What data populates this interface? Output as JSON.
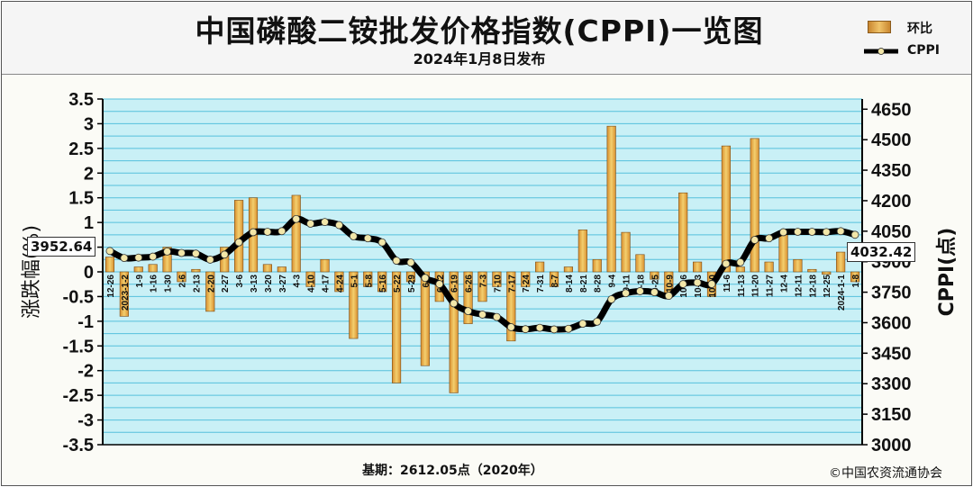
{
  "title": "中国磷酸二铵批发价格指数(CPPI)一览图",
  "subtitle": "2024年1月8日发布",
  "legend": {
    "bar_label": "环比",
    "line_label": "CPPI"
  },
  "axes": {
    "left_label": "涨跌幅(%)",
    "right_label": "CPPI(点)",
    "left_ticks": [
      "3.5",
      "3",
      "2.5",
      "2",
      "1.5",
      "1",
      "0.5",
      "0",
      "-0.5",
      "-1",
      "-1.5",
      "-2",
      "-2.5",
      "-3",
      "-3.5"
    ],
    "right_ticks": [
      "4650",
      "4500",
      "4350",
      "4200",
      "4050",
      "3900",
      "3750",
      "3600",
      "3450",
      "3300",
      "3150",
      "3000"
    ]
  },
  "callouts": {
    "start": "3952.64",
    "end": "4032.42"
  },
  "footer_note": "基期：2612.05点（2020年）",
  "copyright": "©中国农资流通协会",
  "colors": {
    "bar": "#d98f2f",
    "bar_light": "#f3cf6e",
    "line": "#000000",
    "marker": "#f2e6a8",
    "plot_bg": "#c9f0f6",
    "grid": "#55c0dc"
  },
  "chart_data": {
    "type": "bar+line",
    "left_axis": {
      "label": "涨跌幅(%)",
      "range": [
        -3.5,
        3.5
      ]
    },
    "right_axis": {
      "label": "CPPI(点)",
      "range": [
        3000,
        4700
      ]
    },
    "x_tick_labels": [
      "12-26",
      "2023-1-2",
      "1-9",
      "1-16",
      "1-30",
      "2-6",
      "2-13",
      "2-20",
      "2-27",
      "3-6",
      "3-13",
      "3-20",
      "3-27",
      "4-3",
      "4-10",
      "4-17",
      "4-24",
      "5-1",
      "5-8",
      "5-16",
      "5-22",
      "5-29",
      "6-5",
      "6-12",
      "6-19",
      "6-26",
      "7-3",
      "7-10",
      "7-17",
      "7-24",
      "7-31",
      "8-7",
      "8-14",
      "8-21",
      "8-28",
      "9-4",
      "9-11",
      "9-18",
      "9-25",
      "10-9",
      "10-16",
      "10-23",
      "10-30",
      "11-6",
      "11-13",
      "11-20",
      "11-27",
      "12-4",
      "12-11",
      "12-18",
      "12-25",
      "2024-1-1",
      "1-8"
    ],
    "series": [
      {
        "name": "环比",
        "type": "bar",
        "values": [
          0.3,
          -0.9,
          0.1,
          0.15,
          0.5,
          -0.2,
          0.05,
          -0.8,
          0.5,
          1.45,
          1.5,
          0.15,
          0.1,
          1.55,
          -0.3,
          0.25,
          -0.4,
          -1.35,
          -0.3,
          -0.4,
          -2.25,
          -0.2,
          -1.9,
          -0.6,
          -2.45,
          -1.05,
          -0.6,
          -0.3,
          -1.4,
          -0.3,
          0.2,
          -0.3,
          0.1,
          0.85,
          0.25,
          2.95,
          0.8,
          0.35,
          -0.15,
          -0.5,
          1.6,
          0.2,
          -0.5,
          2.55,
          0.1,
          2.7,
          0.2,
          0.75,
          0.25,
          0.05,
          -0.05,
          0.4,
          -0.2
        ]
      },
      {
        "name": "CPPI",
        "type": "line",
        "values": [
          3952.64,
          3918,
          3920,
          3925,
          3950,
          3943,
          3940,
          3910,
          3935,
          3995,
          4045,
          4047,
          4050,
          4110,
          4087,
          4095,
          4080,
          4025,
          4015,
          3995,
          3905,
          3896,
          3820,
          3790,
          3695,
          3657,
          3640,
          3628,
          3578,
          3568,
          3575,
          3567,
          3570,
          3595,
          3605,
          3715,
          3745,
          3755,
          3750,
          3732,
          3790,
          3797,
          3790,
          3890,
          3897,
          4007,
          4015,
          4045,
          4047,
          4047,
          4046,
          4050,
          4032.42
        ]
      }
    ]
  }
}
